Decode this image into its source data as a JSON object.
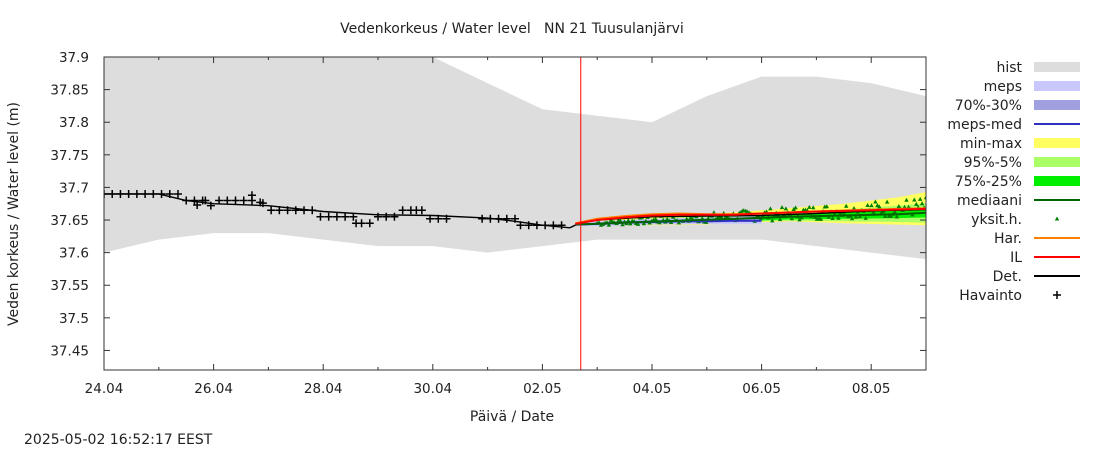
{
  "chart_data": {
    "type": "line",
    "title": "Vedenkorkeus / Water level   NN 21 Tuusulanjärvi",
    "xlabel": "Päivä / Date",
    "ylabel": "Veden korkeus / Water level (m)",
    "timestamp": "2025-05-02 16:52:17 EEST",
    "xlim": [
      0,
      15
    ],
    "ylim": [
      37.42,
      37.9
    ],
    "x_ticks": [
      {
        "x": 0,
        "label": "24.04"
      },
      {
        "x": 2,
        "label": "26.04"
      },
      {
        "x": 4,
        "label": "28.04"
      },
      {
        "x": 6,
        "label": "30.04"
      },
      {
        "x": 8,
        "label": "02.05"
      },
      {
        "x": 10,
        "label": "04.05"
      },
      {
        "x": 12,
        "label": "06.05"
      },
      {
        "x": 14,
        "label": "08.05"
      }
    ],
    "y_ticks": [
      "37.45",
      "37.5",
      "37.55",
      "37.6",
      "37.65",
      "37.7",
      "37.75",
      "37.8",
      "37.85",
      "37.9"
    ],
    "y_tick_values": [
      37.45,
      37.5,
      37.55,
      37.6,
      37.65,
      37.7,
      37.75,
      37.8,
      37.85,
      37.9
    ],
    "now_x": 8.7,
    "colors": {
      "hist": "#dddddd",
      "meps": "#c8c8ff",
      "p70_30": "#a0a0e0",
      "meps_med": "#3030c0",
      "min_max": "#ffff60",
      "p95_5": "#aaff66",
      "p75_25": "#00ee00",
      "mediaani": "#006400",
      "yksit": "#008000",
      "har": "#ff8000",
      "il": "#ff0000",
      "det": "#000000",
      "havainto": "#000000",
      "now_line": "#ff0000"
    },
    "legend": [
      {
        "label": "hist",
        "type": "box",
        "color": "#dddddd"
      },
      {
        "label": "meps",
        "type": "box",
        "color": "#c8c8ff"
      },
      {
        "label": "70%-30%",
        "type": "box",
        "color": "#a0a0e0"
      },
      {
        "label": "meps-med",
        "type": "line",
        "color": "#3030c0"
      },
      {
        "label": "min-max",
        "type": "box",
        "color": "#ffff60"
      },
      {
        "label": "95%-5%",
        "type": "box",
        "color": "#aaff66"
      },
      {
        "label": "75%-25%",
        "type": "box",
        "color": "#00ee00"
      },
      {
        "label": "mediaani",
        "type": "line",
        "color": "#006400"
      },
      {
        "label": "yksit.h.",
        "type": "tri",
        "color": "#008000"
      },
      {
        "label": "Har.",
        "type": "line",
        "color": "#ff8000"
      },
      {
        "label": "IL",
        "type": "line",
        "color": "#ff0000"
      },
      {
        "label": "Det.",
        "type": "line",
        "color": "#000000"
      },
      {
        "label": "Havainto",
        "type": "plus",
        "color": "#000000"
      }
    ],
    "series": [
      {
        "name": "hist",
        "kind": "band",
        "x": [
          0,
          1,
          2,
          3,
          4,
          5,
          6,
          7,
          8,
          9,
          10,
          11,
          12,
          13,
          14,
          15
        ],
        "high": [
          37.9,
          37.9,
          37.9,
          37.9,
          37.9,
          37.9,
          37.9,
          37.86,
          37.82,
          37.81,
          37.8,
          37.84,
          37.87,
          37.87,
          37.86,
          37.84
        ],
        "low": [
          37.6,
          37.62,
          37.63,
          37.63,
          37.62,
          37.61,
          37.61,
          37.6,
          37.61,
          37.62,
          37.62,
          37.62,
          37.62,
          37.61,
          37.6,
          37.59
        ]
      },
      {
        "name": "min-max",
        "kind": "band",
        "x": [
          8.6,
          9.5,
          10.5,
          11.5,
          12.5,
          13.5,
          14.5,
          15
        ],
        "high": [
          37.645,
          37.652,
          37.657,
          37.662,
          37.668,
          37.675,
          37.685,
          37.693
        ],
        "low": [
          37.642,
          37.642,
          37.642,
          37.645,
          37.648,
          37.645,
          37.643,
          37.642
        ]
      },
      {
        "name": "95%-5%",
        "kind": "band",
        "x": [
          8.6,
          9.5,
          10.5,
          11.5,
          12.5,
          13.5,
          14.5,
          15
        ],
        "high": [
          37.644,
          37.65,
          37.654,
          37.658,
          37.662,
          37.666,
          37.672,
          37.676
        ],
        "low": [
          37.642,
          37.643,
          37.645,
          37.647,
          37.649,
          37.648,
          37.647,
          37.646
        ]
      },
      {
        "name": "75%-25%",
        "kind": "band",
        "x": [
          8.6,
          9.5,
          10.5,
          11.5,
          12.5,
          13.5,
          14.5,
          15
        ],
        "high": [
          37.643,
          37.648,
          37.652,
          37.655,
          37.659,
          37.662,
          37.665,
          37.668
        ],
        "low": [
          37.642,
          37.644,
          37.646,
          37.648,
          37.651,
          37.652,
          37.653,
          37.654
        ]
      },
      {
        "name": "meps",
        "kind": "band",
        "x": [
          8.6,
          9.0,
          9.5,
          10.0,
          10.5,
          11.0,
          11.5,
          12.0
        ],
        "high": [
          37.645,
          37.648,
          37.65,
          37.652,
          37.653,
          37.654,
          37.655,
          37.656
        ],
        "low": [
          37.641,
          37.641,
          37.642,
          37.643,
          37.643,
          37.644,
          37.644,
          37.644
        ]
      },
      {
        "name": "70%-30%",
        "kind": "band",
        "x": [
          8.6,
          9.0,
          9.5,
          10.0,
          10.5,
          11.0,
          11.5,
          12.0
        ],
        "high": [
          37.644,
          37.646,
          37.648,
          37.65,
          37.651,
          37.651,
          37.652,
          37.652
        ],
        "low": [
          37.642,
          37.643,
          37.644,
          37.645,
          37.646,
          37.646,
          37.647,
          37.647
        ]
      },
      {
        "name": "Det.",
        "kind": "line",
        "x": [
          0,
          1,
          1.5,
          2,
          3,
          4,
          5,
          6,
          7,
          7.5,
          8,
          8.5,
          8.7,
          9,
          10,
          11,
          12,
          13,
          14,
          15
        ],
        "y": [
          37.69,
          37.69,
          37.68,
          37.675,
          37.672,
          37.663,
          37.658,
          37.657,
          37.653,
          37.648,
          37.642,
          37.638,
          37.646,
          37.65,
          37.655,
          37.656,
          37.657,
          37.66,
          37.664,
          37.666
        ]
      },
      {
        "name": "meps-med",
        "kind": "line",
        "x": [
          8.6,
          9.0,
          9.5,
          10.0,
          10.5,
          11.0,
          11.5,
          12.0
        ],
        "y": [
          37.643,
          37.644,
          37.646,
          37.647,
          37.648,
          37.648,
          37.649,
          37.649
        ]
      },
      {
        "name": "mediaani",
        "kind": "line",
        "x": [
          8.6,
          9.5,
          10.5,
          11.5,
          12.5,
          13.5,
          14.5,
          15
        ],
        "y": [
          37.643,
          37.646,
          37.649,
          37.652,
          37.655,
          37.657,
          37.659,
          37.661
        ]
      },
      {
        "name": "Har.",
        "kind": "line",
        "x": [
          8.6,
          9.0,
          9.5,
          10.0,
          10.5,
          11.0,
          11.5,
          12.0,
          13.0,
          14.0,
          15.0
        ],
        "y": [
          37.645,
          37.652,
          37.656,
          37.659,
          37.66,
          37.659,
          37.659,
          37.66,
          37.663,
          37.666,
          37.668
        ]
      },
      {
        "name": "IL",
        "kind": "line",
        "x": [
          8.6,
          9.0,
          9.5,
          10.0,
          10.5,
          11.0,
          11.5,
          12.0,
          13.0,
          14.0,
          15.0
        ],
        "y": [
          37.644,
          37.65,
          37.654,
          37.657,
          37.658,
          37.658,
          37.658,
          37.66,
          37.663,
          37.665,
          37.667
        ]
      },
      {
        "name": "Havainto",
        "kind": "plus",
        "x": [
          0,
          0.15,
          0.3,
          0.45,
          0.6,
          0.75,
          0.9,
          1.05,
          1.2,
          1.35,
          1.5,
          1.65,
          1.7,
          1.8,
          1.85,
          1.95,
          2.1,
          2.25,
          2.4,
          2.55,
          2.7,
          2.7,
          2.85,
          2.9,
          3.05,
          3.2,
          3.35,
          3.5,
          3.65,
          3.8,
          3.95,
          4.1,
          4.25,
          4.4,
          4.55,
          4.6,
          4.7,
          4.85,
          5.0,
          5.15,
          5.3,
          5.45,
          5.6,
          5.7,
          5.8,
          5.95,
          6.1,
          6.25,
          6.9,
          7.05,
          7.2,
          7.35,
          7.5,
          7.6,
          7.75,
          7.9,
          8.05,
          8.2,
          8.35
        ],
        "y": [
          37.69,
          37.69,
          37.69,
          37.69,
          37.69,
          37.69,
          37.69,
          37.69,
          37.69,
          37.69,
          37.68,
          37.68,
          37.673,
          37.68,
          37.68,
          37.672,
          37.68,
          37.68,
          37.68,
          37.68,
          37.688,
          37.68,
          37.677,
          37.676,
          37.665,
          37.665,
          37.665,
          37.665,
          37.665,
          37.665,
          37.655,
          37.655,
          37.655,
          37.655,
          37.655,
          37.645,
          37.645,
          37.645,
          37.655,
          37.655,
          37.655,
          37.665,
          37.665,
          37.665,
          37.665,
          37.652,
          37.652,
          37.652,
          37.652,
          37.652,
          37.652,
          37.652,
          37.652,
          37.642,
          37.642,
          37.642,
          37.642,
          37.642,
          37.642
        ]
      },
      {
        "name": "yksit.h.",
        "kind": "tri",
        "range_x": [
          9.0,
          15.0
        ],
        "center": [
          37.645,
          37.67
        ],
        "spread": [
          0.004,
          0.015
        ]
      }
    ]
  }
}
